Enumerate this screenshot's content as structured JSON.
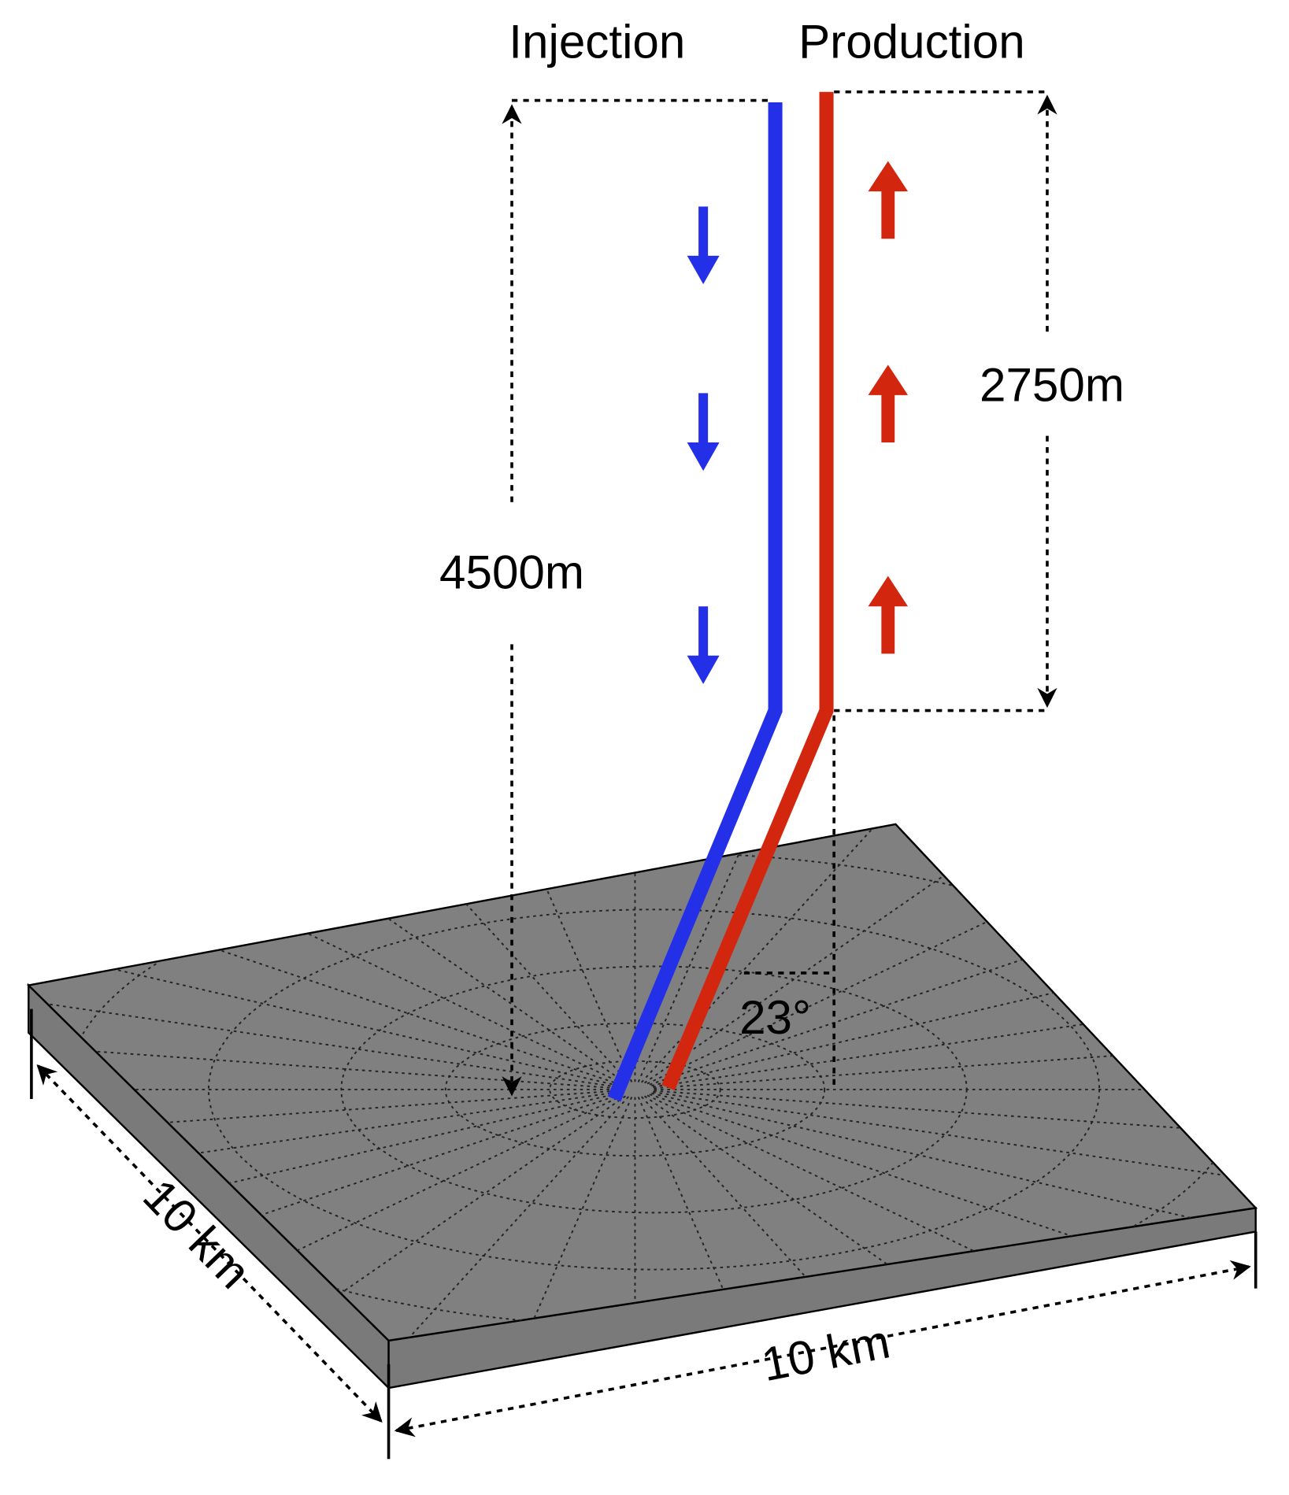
{
  "wells": {
    "injection": {
      "label": "Injection"
    },
    "production": {
      "label": "Production"
    }
  },
  "dimensions": {
    "injection_depth": "4500m",
    "production_depth": "2750m",
    "deviation_angle": "23°",
    "length": "10 km",
    "width": "10 km"
  }
}
